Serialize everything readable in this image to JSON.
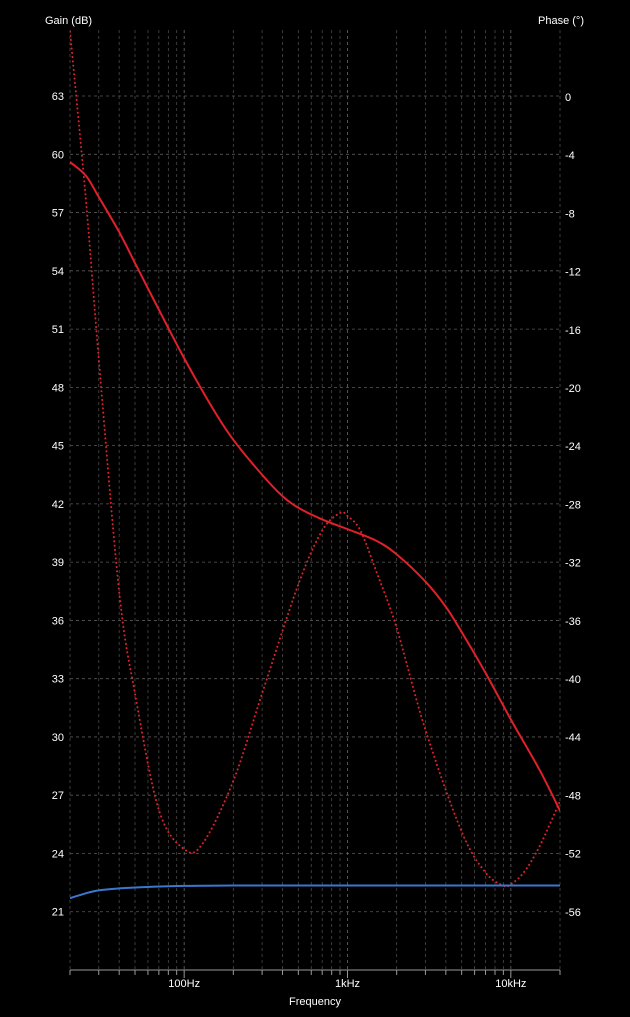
{
  "chart_data": {
    "type": "line",
    "ylabel_left": "Gain (dB)",
    "ylabel_right": "Phase (°)",
    "xlabel": "Frequency",
    "x_scale": "log",
    "xlim": [
      20,
      20000
    ],
    "ylim_left": [
      18,
      66.4
    ],
    "ylim_right": [
      -60,
      4.6
    ],
    "grid": true,
    "x_ticks": [
      {
        "value": 100,
        "label": "100Hz"
      },
      {
        "value": 1000,
        "label": "1kHz"
      },
      {
        "value": 10000,
        "label": "10kHz"
      }
    ],
    "y_ticks_left": [
      21,
      24,
      27,
      30,
      33,
      36,
      39,
      42,
      45,
      48,
      51,
      54,
      57,
      60,
      63
    ],
    "y_ticks_right": [
      -56,
      -52,
      -48,
      -44,
      -40,
      -36,
      -32,
      -28,
      -24,
      -20,
      -16,
      -12,
      -8,
      -4,
      0
    ],
    "series": [
      {
        "color": "#e0202a",
        "style": "solid",
        "axis": "left",
        "x": [
          20,
          25,
          30,
          40,
          50,
          70,
          100,
          150,
          200,
          300,
          400,
          500,
          700,
          1000,
          1500,
          2000,
          3000,
          4000,
          5000,
          7000,
          10000,
          15000,
          20000
        ],
        "y": [
          59.6,
          58.9,
          57.8,
          56.0,
          54.4,
          52.0,
          49.5,
          46.9,
          45.3,
          43.5,
          42.4,
          41.8,
          41.2,
          40.7,
          40.1,
          39.4,
          38.0,
          36.7,
          35.4,
          33.3,
          30.9,
          28.3,
          26.2
        ]
      },
      {
        "color": "#e0202a",
        "style": "dotted",
        "axis": "right",
        "x": [
          20,
          25,
          30,
          40,
          50,
          70,
          100,
          130,
          200,
          300,
          500,
          700,
          900,
          1000,
          1200,
          1500,
          2000,
          3000,
          5000,
          7000,
          9000,
          10000,
          12000,
          15000,
          20000
        ],
        "y": [
          4.5,
          -7,
          -18,
          -34,
          -41,
          -49,
          -51.7,
          -51.3,
          -47,
          -41,
          -33.5,
          -29.8,
          -28.6,
          -28.8,
          -29.8,
          -32.6,
          -36.5,
          -43.5,
          -50.5,
          -53.3,
          -54.2,
          -54.1,
          -53.3,
          -51.5,
          -48.4
        ]
      },
      {
        "color": "#3a78d0",
        "style": "solid",
        "axis": "left",
        "x": [
          20,
          25,
          30,
          40,
          50,
          70,
          100,
          200,
          1000,
          10000,
          20000
        ],
        "y": [
          21.7,
          21.95,
          22.1,
          22.2,
          22.25,
          22.3,
          22.33,
          22.35,
          22.35,
          22.35,
          22.35
        ]
      }
    ]
  }
}
